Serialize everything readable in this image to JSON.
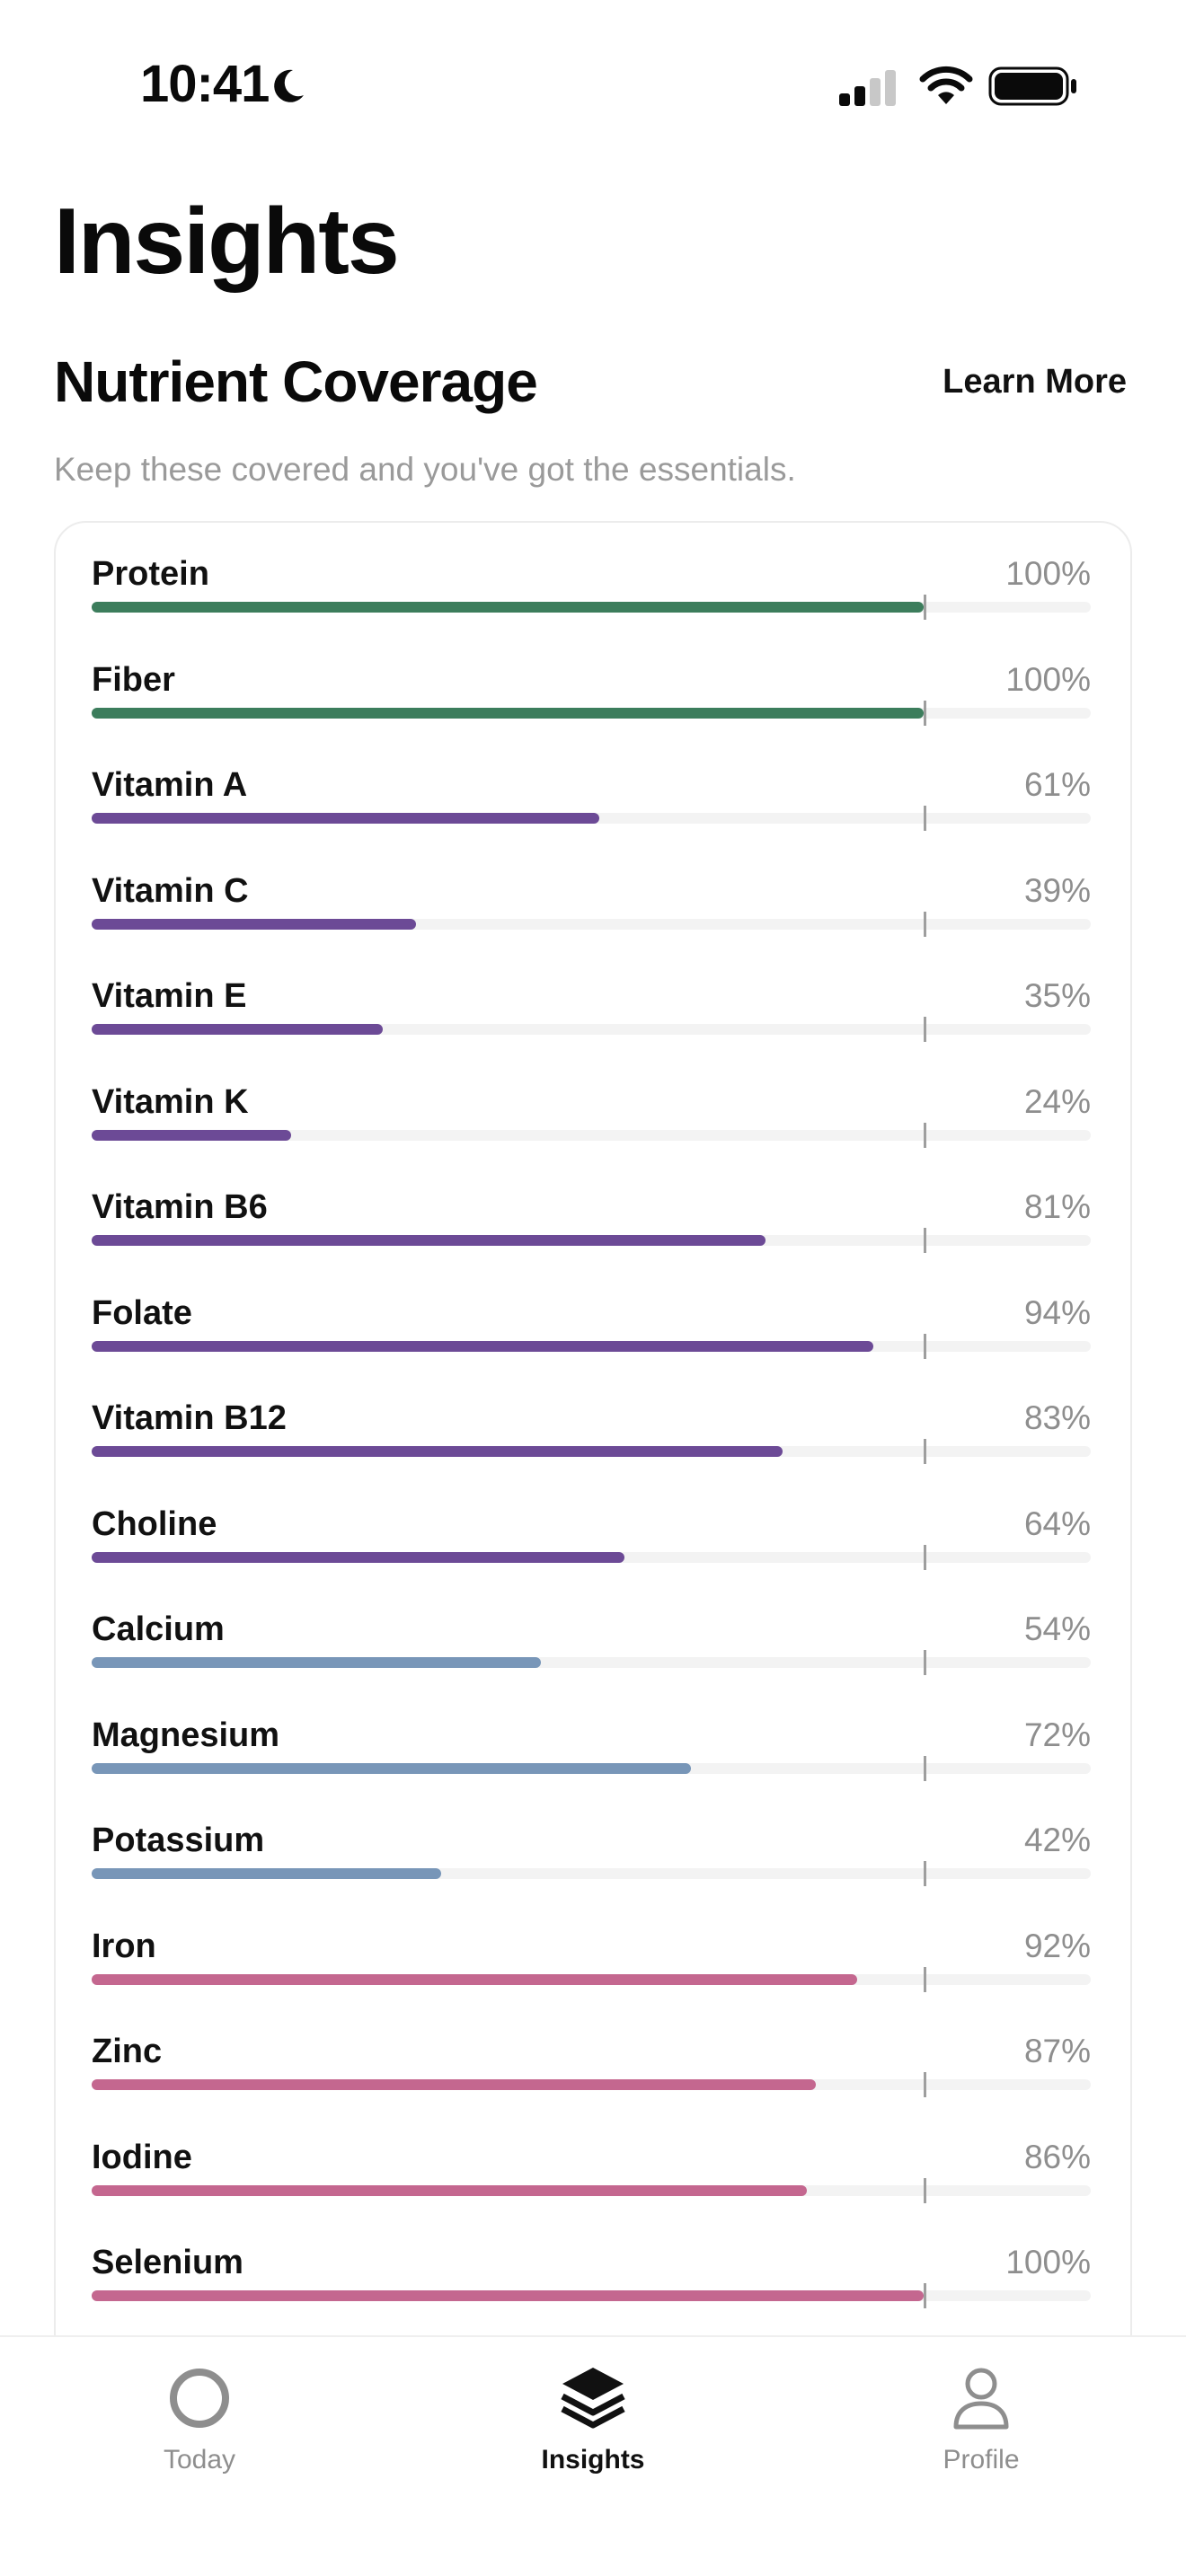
{
  "status_bar": {
    "time": "10:41",
    "icons": [
      "moon-icon",
      "cellular-signal-icon",
      "wifi-icon",
      "battery-icon"
    ]
  },
  "page": {
    "title": "Insights"
  },
  "section": {
    "title": "Nutrient Coverage",
    "learn_more_label": "Learn More",
    "subtitle": "Keep these covered and you've got the essentials."
  },
  "colors": {
    "green": "#3c7d5c",
    "purple": "#6c4a96",
    "blue": "#7896b8",
    "pink": "#c4678f",
    "target_tick": "#9e9e9e"
  },
  "nutrients": [
    {
      "name": "Protein",
      "percent_label": "100%",
      "value": 100,
      "color": "green"
    },
    {
      "name": "Fiber",
      "percent_label": "100%",
      "value": 100,
      "color": "green"
    },
    {
      "name": "Vitamin A",
      "percent_label": "61%",
      "value": 61,
      "color": "purple"
    },
    {
      "name": "Vitamin C",
      "percent_label": "39%",
      "value": 39,
      "color": "purple"
    },
    {
      "name": "Vitamin E",
      "percent_label": "35%",
      "value": 35,
      "color": "purple"
    },
    {
      "name": "Vitamin K",
      "percent_label": "24%",
      "value": 24,
      "color": "purple"
    },
    {
      "name": "Vitamin B6",
      "percent_label": "81%",
      "value": 81,
      "color": "purple"
    },
    {
      "name": "Folate",
      "percent_label": "94%",
      "value": 94,
      "color": "purple"
    },
    {
      "name": "Vitamin B12",
      "percent_label": "83%",
      "value": 83,
      "color": "purple"
    },
    {
      "name": "Choline",
      "percent_label": "64%",
      "value": 64,
      "color": "purple"
    },
    {
      "name": "Calcium",
      "percent_label": "54%",
      "value": 54,
      "color": "blue"
    },
    {
      "name": "Magnesium",
      "percent_label": "72%",
      "value": 72,
      "color": "blue"
    },
    {
      "name": "Potassium",
      "percent_label": "42%",
      "value": 42,
      "color": "blue"
    },
    {
      "name": "Iron",
      "percent_label": "92%",
      "value": 92,
      "color": "pink"
    },
    {
      "name": "Zinc",
      "percent_label": "87%",
      "value": 87,
      "color": "pink"
    },
    {
      "name": "Iodine",
      "percent_label": "86%",
      "value": 86,
      "color": "pink"
    },
    {
      "name": "Selenium",
      "percent_label": "100%",
      "value": 100,
      "color": "pink"
    }
  ],
  "tab_bar": {
    "tabs": [
      {
        "label": "Today",
        "icon": "circle-icon",
        "active": false
      },
      {
        "label": "Insights",
        "icon": "layers-icon",
        "active": true
      },
      {
        "label": "Profile",
        "icon": "person-icon",
        "active": false
      }
    ]
  }
}
